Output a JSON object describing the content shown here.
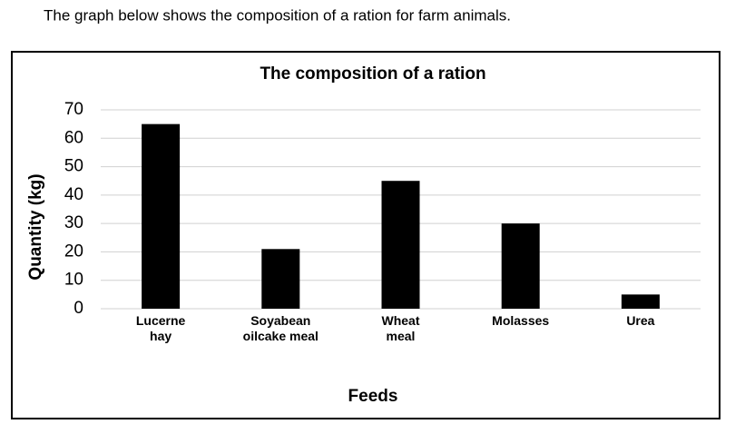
{
  "intro": "The graph below shows the composition of a ration for farm animals.",
  "chart_data": {
    "type": "bar",
    "title": "The composition of a ration",
    "categories": [
      "Lucerne\nhay",
      "Soyabean\noilcake meal",
      "Wheat\nmeal",
      "Molasses",
      "Urea"
    ],
    "values": [
      65,
      21,
      45,
      30,
      5
    ],
    "color": "#000000",
    "x_label": "Feeds",
    "y_label": "Quantity (kg)",
    "ylim": [
      0,
      70
    ],
    "yticks": [
      0,
      10,
      20,
      30,
      40,
      50,
      60,
      70
    ],
    "grid": true
  }
}
